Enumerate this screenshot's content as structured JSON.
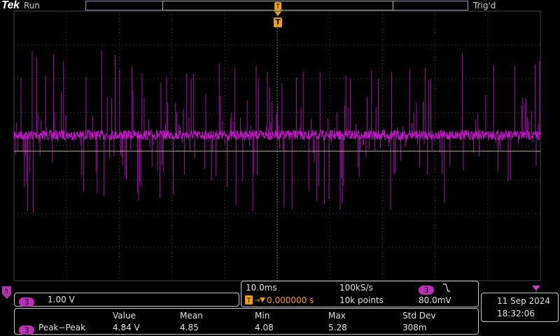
{
  "header": {
    "logo": "Tek",
    "run_state": "Run",
    "trigger_status": "Trig'd",
    "trigger_marker": "T"
  },
  "channel": {
    "number": "3",
    "scale": "1.00 V",
    "color": "#d21ad6"
  },
  "timebase": {
    "horizontal_scale": "10.0ms",
    "sample_rate": "100kS/s",
    "trigger_delay": "0.000000 s",
    "record_length": "10k points",
    "trigger_channel": "3",
    "trigger_slope_icon": "falling-edge-icon",
    "trigger_level": "80.0mV"
  },
  "measurements": {
    "headers": [
      "Value",
      "Mean",
      "Min",
      "Max",
      "Std Dev"
    ],
    "rows": [
      {
        "channel": "3",
        "name": "Peak−Peak",
        "value": "4.84 V",
        "mean": "4.85",
        "min": "4.08",
        "max": "5.28",
        "std_dev": "308m"
      }
    ]
  },
  "datetime": {
    "date": "11 Sep  2024",
    "time": "18:32:06"
  }
}
